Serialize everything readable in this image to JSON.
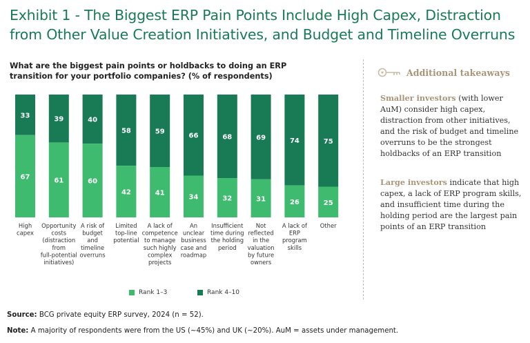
{
  "exhibit_title": "Exhibit 1 - The Biggest ERP Pain Points Include High Capex, Distraction from Other Value Creation Initiatives, and Budget and Timeline Overruns",
  "question": "What are the biggest pain points or holdbacks to doing an ERP transition for your portfolio companies? (% of respondents)",
  "colors": {
    "title": "#197a56",
    "rank_1_3": "#3ebb6e",
    "rank_4_10": "#197a56",
    "takeaway_accent": "#a8957b"
  },
  "chart_data": {
    "type": "bar",
    "stacked": true,
    "percent_stacked": true,
    "ylim": [
      0,
      100
    ],
    "categories": [
      [
        "High",
        "capex"
      ],
      [
        "Opportunity",
        "costs",
        "(distraction",
        "from",
        "full-potential",
        "initiatives)"
      ],
      [
        "A risk of",
        "budget",
        "and",
        "timeline",
        "overruns"
      ],
      [
        "Limited",
        "top-line",
        "potential"
      ],
      [
        "A lack of",
        "competence",
        "to manage",
        "such highly",
        "complex",
        "projects"
      ],
      [
        "An",
        "unclear",
        "business",
        "case and",
        "roadmap"
      ],
      [
        "Insufficient",
        "time during",
        "the holding",
        "period"
      ],
      [
        "Not",
        "reflected",
        "in the",
        "valuation",
        "by future",
        "owners"
      ],
      [
        "A lack of",
        "ERP",
        "program",
        "skills"
      ],
      [
        "Other"
      ]
    ],
    "series": [
      {
        "name": "Rank 1–3",
        "values": [
          67,
          61,
          60,
          42,
          41,
          34,
          32,
          31,
          26,
          25
        ]
      },
      {
        "name": "Rank 4–10",
        "values": [
          33,
          39,
          40,
          58,
          59,
          66,
          68,
          69,
          74,
          75
        ]
      }
    ]
  },
  "takeaways": {
    "heading": "Additional takeaways",
    "items": [
      {
        "bold": "Smaller investors",
        "text": " (with lower AuM) consider high capex, distraction from other initiatives, and the risk of budget and timeline overruns to be the strongest holdbacks of an ERP transition"
      },
      {
        "bold": "Large investors",
        "text": " indicate that high capex, a lack of ERP program skills, and insufficient time during the holding period are the largest pain points of an ERP transition"
      }
    ]
  },
  "footer": {
    "source_label": "Source:",
    "source_text": " BCG private equity ERP survey, 2024 (n = 52).",
    "note_label": "Note:",
    "note_text": " A majority of respondents were from the US (~45%) and UK (~20%). AuM = assets under management."
  }
}
